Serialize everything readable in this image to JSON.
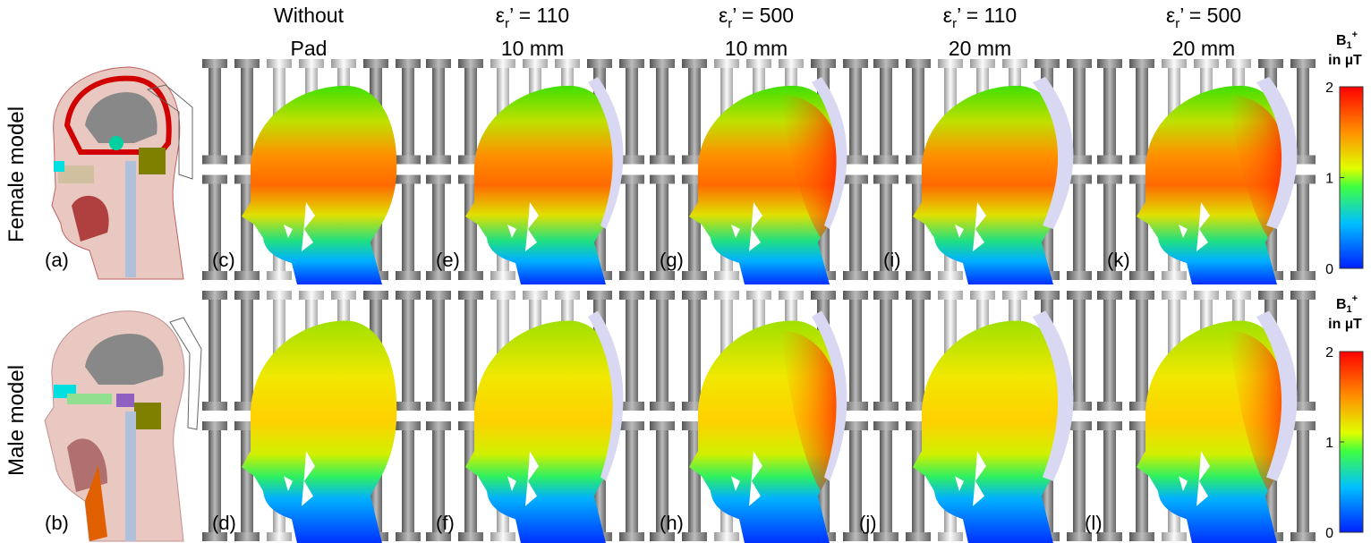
{
  "row_labels": [
    "Female model",
    "Male model"
  ],
  "columns": [
    {
      "line1": "Without",
      "line2": "Pad"
    },
    {
      "symbol": "ε",
      "sub": "r",
      "line1": "’ = 110",
      "line2": "10 mm"
    },
    {
      "symbol": "ε",
      "sub": "r",
      "line1": "’ = 500",
      "line2": "10 mm"
    },
    {
      "symbol": "ε",
      "sub": "r",
      "line1": "’ = 110",
      "line2": "20 mm"
    },
    {
      "symbol": "ε",
      "sub": "r",
      "line1": "’ = 500",
      "line2": "20 mm"
    }
  ],
  "panel_labels": [
    [
      "(a)",
      "(c)",
      "(e)",
      "(g)",
      "(i)",
      "(k)"
    ],
    [
      "(b)",
      "(d)",
      "(f)",
      "(h)",
      "(j)",
      "(l)"
    ]
  ],
  "colorbar": {
    "title": {
      "base": "B",
      "sub": "1",
      "sup": "+",
      "unit": "in µT"
    },
    "ticks": [
      2,
      1,
      0
    ]
  }
}
